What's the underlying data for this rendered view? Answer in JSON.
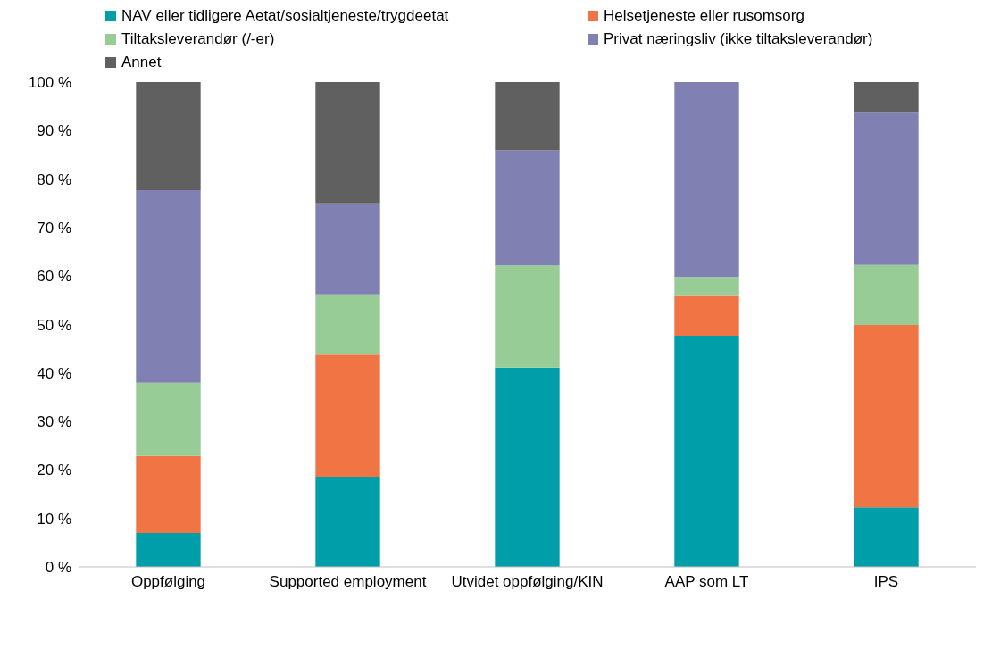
{
  "chart_data": {
    "type": "bar",
    "stacked": true,
    "categories": [
      "Oppfølging",
      "Supported employment",
      "Utvidet oppfølging/KIN",
      "AAP som LT",
      "IPS"
    ],
    "series": [
      {
        "name": "NAV eller tidligere Aetat/sosialtjeneste/trygdeetat",
        "color": "#009ea9",
        "values": [
          7.0,
          18.6,
          41.1,
          47.7,
          12.3
        ]
      },
      {
        "name": "Helsetjeneste eller rusomsorg",
        "color": "#f07444",
        "values": [
          15.9,
          25.2,
          0,
          8.2,
          37.6
        ]
      },
      {
        "name": "Tiltaksleverandør (/-er)",
        "color": "#98cc96",
        "values": [
          15.1,
          12.4,
          21.1,
          3.9,
          12.4
        ]
      },
      {
        "name": "Privat næringsliv (ikke tiltaksleverandør)",
        "color": "#8080b2",
        "values": [
          39.7,
          18.8,
          23.7,
          40.2,
          31.4
        ]
      },
      {
        "name": "Annet",
        "color": "#606060",
        "values": [
          22.3,
          25.0,
          14.1,
          0,
          6.3
        ]
      }
    ],
    "ylim": [
      0,
      100
    ],
    "yticks": [
      {
        "value": 0,
        "label": "0 %"
      },
      {
        "value": 10,
        "label": "10 %"
      },
      {
        "value": 20,
        "label": "20 %"
      },
      {
        "value": 30,
        "label": "30 %"
      },
      {
        "value": 40,
        "label": "40 %"
      },
      {
        "value": 50,
        "label": "50 %"
      },
      {
        "value": 60,
        "label": "60 %"
      },
      {
        "value": 70,
        "label": "70 %"
      },
      {
        "value": 80,
        "label": "80 %"
      },
      {
        "value": 90,
        "label": "90 %"
      },
      {
        "value": 100,
        "label": "100 %"
      }
    ],
    "grid": false,
    "legend": "top"
  }
}
